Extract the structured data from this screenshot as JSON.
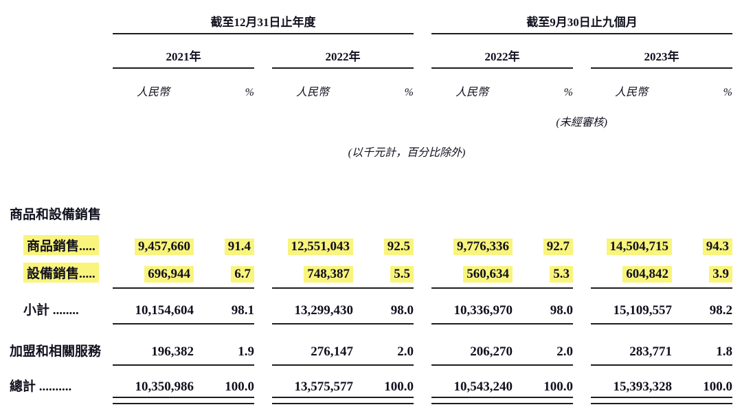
{
  "document": {
    "period_headers": [
      "截至12月31日止年度",
      "截至9月30日止九個月"
    ],
    "year_headers": [
      "2021年",
      "2022年",
      "2022年",
      "2023年"
    ],
    "col_rmb": "人民幣",
    "col_pct": "%",
    "unaudited": "(未經審核)",
    "units_note": "(以千元計，百分比除外)",
    "section": "商品和設備銷售",
    "rows": [
      {
        "label": "商品銷售.....",
        "v": [
          "9,457,660",
          "91.4",
          "12,551,043",
          "92.5",
          "9,776,336",
          "92.7",
          "14,504,715",
          "94.3"
        ]
      },
      {
        "label": "設備銷售.....",
        "v": [
          "696,944",
          "6.7",
          "748,387",
          "5.5",
          "560,634",
          "5.3",
          "604,842",
          "3.9"
        ]
      },
      {
        "label": "小計 ........",
        "v": [
          "10,154,604",
          "98.1",
          "13,299,430",
          "98.0",
          "10,336,970",
          "98.0",
          "15,109,557",
          "98.2"
        ]
      },
      {
        "label": "加盟和相關服務",
        "v": [
          "196,382",
          "1.9",
          "276,147",
          "2.0",
          "206,270",
          "2.0",
          "283,771",
          "1.8"
        ]
      },
      {
        "label": "總計 ..........",
        "v": [
          "10,350,986",
          "100.0",
          "13,575,577",
          "100.0",
          "10,543,240",
          "100.0",
          "15,393,328",
          "100.0"
        ]
      }
    ],
    "colors": {
      "highlight": "#f9f47c",
      "text": "#10101e",
      "line": "#1c1c1c"
    }
  }
}
